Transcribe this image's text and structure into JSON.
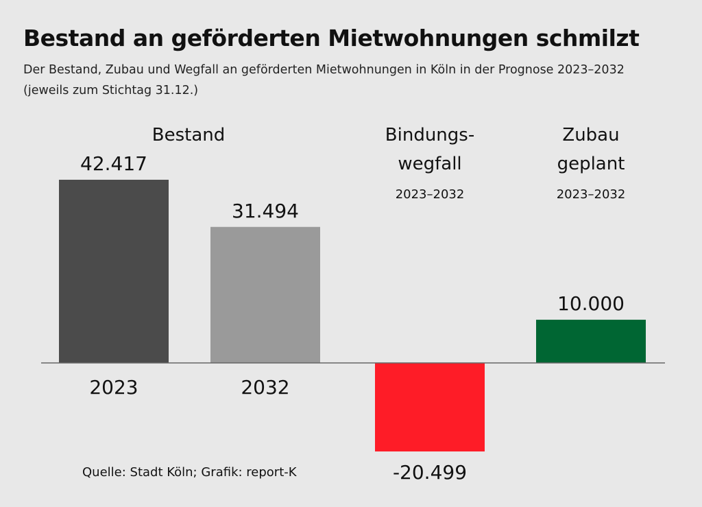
{
  "title": "Bestand an geförderten Mietwohnungen schmilzt",
  "subtitle_line1": "Der Bestand, Zubau und Wegfall an geförderten Mietwohnungen in Köln in der Prognose 2023–2032",
  "subtitle_line2": "(jeweils zum Stichtag 31.12.)",
  "source": "Quelle: Stadt Köln; Grafik: report-K",
  "chart_data": {
    "type": "bar",
    "categories": [
      "2023",
      "2032",
      "Bindungswegfall 2023–2032",
      "Zubau geplant 2023–2032"
    ],
    "values": [
      42417,
      31494,
      -20499,
      10000
    ],
    "value_labels": [
      "42.417",
      "31.494",
      "-20.499",
      "10.000"
    ],
    "bar_labels_below": [
      "2023",
      "2032",
      "",
      ""
    ],
    "group_headers": [
      {
        "lines": [
          "Bestand"
        ],
        "period": ""
      },
      {
        "lines": [
          "Bindungs-",
          "wegfall"
        ],
        "period": "2023–2032"
      },
      {
        "lines": [
          "Zubau",
          "geplant"
        ],
        "period": "2023–2032"
      }
    ],
    "colors": [
      "#4b4b4b",
      "#9a9a9a",
      "#fe1c27",
      "#006633"
    ],
    "ylim": [
      -20499,
      42417
    ]
  }
}
